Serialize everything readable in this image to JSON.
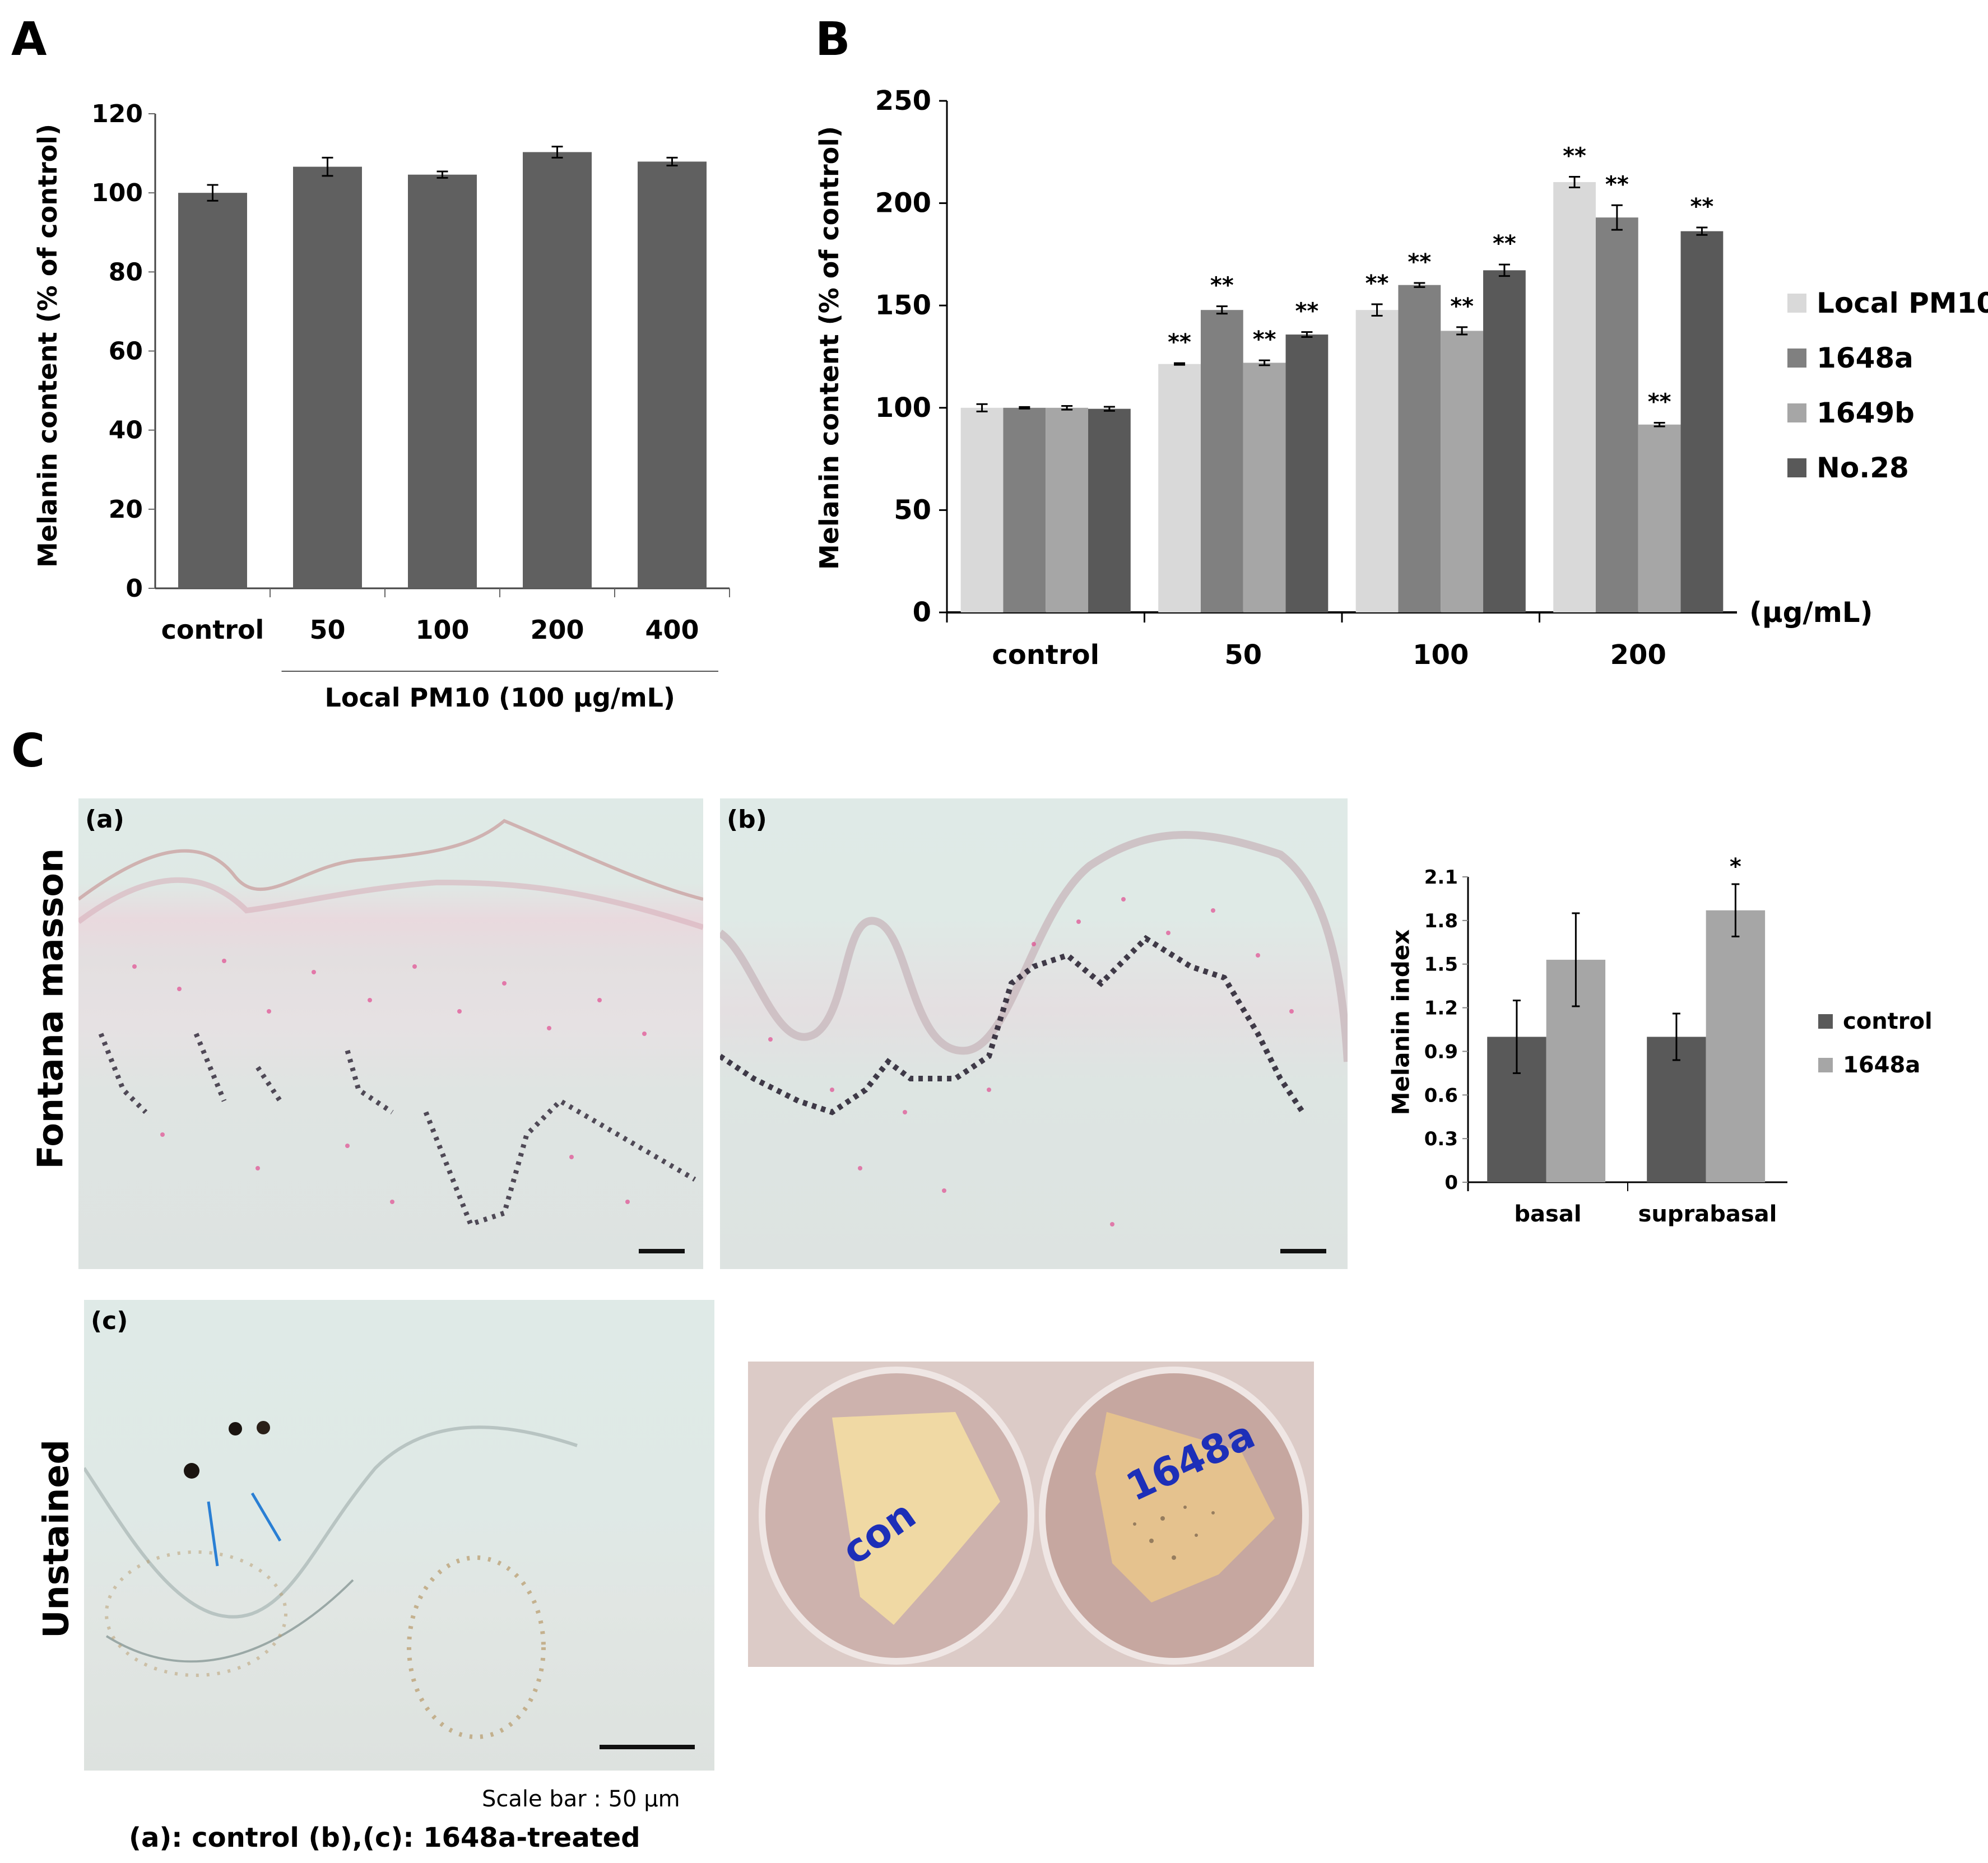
{
  "panels": {
    "A": {
      "label": "A"
    },
    "B": {
      "label": "B"
    },
    "C": {
      "label": "C"
    }
  },
  "chart_data": [
    {
      "id": "A",
      "type": "bar",
      "title": "",
      "xlabel": "Local PM10 (100 µg/mL)",
      "ylabel": "Melanin content (% of control)",
      "ylim": [
        0,
        120
      ],
      "yticks": [
        0,
        20,
        40,
        60,
        80,
        100,
        120
      ],
      "categories": [
        "control",
        "50",
        "100",
        "200",
        "400"
      ],
      "group_label": "Local PM10 (100 µg/mL)",
      "group_spans": [
        "50",
        "100",
        "200",
        "400"
      ],
      "values": [
        100.0,
        106.6,
        104.6,
        110.3,
        107.9
      ],
      "errors": [
        2.0,
        2.3,
        0.8,
        1.4,
        1.0
      ],
      "color": "#606060",
      "grid": false
    },
    {
      "id": "B",
      "type": "bar",
      "title": "",
      "xlabel": "(µg/mL)",
      "ylabel": "Melanin content (% of control)",
      "ylim": [
        0,
        250
      ],
      "yticks": [
        0,
        50,
        100,
        150,
        200,
        250
      ],
      "categories": [
        "control",
        "50",
        "100",
        "200"
      ],
      "legend_position": "right",
      "series": [
        {
          "name": "Local PM10",
          "color": "#d9d9d9",
          "values": [
            100.0,
            121.4,
            147.8,
            210.3
          ],
          "errors": [
            1.8,
            0.4,
            2.8,
            2.6
          ],
          "significance": [
            "",
            "**",
            "**",
            "**"
          ]
        },
        {
          "name": "1648a",
          "color": "#808080",
          "values": [
            100.0,
            147.8,
            160.0,
            193.0
          ],
          "errors": [
            0.4,
            1.8,
            1.0,
            6.0
          ],
          "significance": [
            "",
            "**",
            "**",
            "**"
          ]
        },
        {
          "name": "1649b",
          "color": "#a6a6a6",
          "values": [
            100.0,
            122.0,
            137.6,
            91.8
          ],
          "errors": [
            0.9,
            1.2,
            1.8,
            0.9
          ],
          "significance": [
            "",
            "**",
            "**",
            "**"
          ]
        },
        {
          "name": "No.28",
          "color": "#595959",
          "values": [
            99.5,
            135.8,
            167.2,
            186.3
          ],
          "errors": [
            1.0,
            1.2,
            2.8,
            1.8
          ],
          "significance": [
            "",
            "**",
            "**",
            "**"
          ]
        }
      ],
      "grid": false
    },
    {
      "id": "C",
      "type": "bar",
      "title": "",
      "xlabel": "",
      "ylabel": "Melanin index",
      "ylim": [
        0,
        2.1
      ],
      "yticks": [
        "0",
        "0.3",
        "0.6",
        "0.9",
        "1.2",
        "1.5",
        "1.8",
        "2.1"
      ],
      "categories": [
        "basal",
        "suprabasal"
      ],
      "legend_position": "right",
      "series": [
        {
          "name": "control",
          "color": "#595959",
          "values": [
            1.0,
            1.0
          ],
          "errors": [
            0.25,
            0.16
          ],
          "significance": [
            "",
            ""
          ]
        },
        {
          "name": "1648a",
          "color": "#a6a6a6",
          "values": [
            1.53,
            1.87
          ],
          "errors": [
            0.32,
            0.18
          ],
          "significance": [
            "",
            "*"
          ]
        }
      ],
      "grid": false
    }
  ],
  "images": {
    "a": {
      "label": "(a)"
    },
    "b": {
      "label": "(b)"
    },
    "c": {
      "label": "(c)"
    },
    "photo": {
      "left_label": "con",
      "right_label": "1648a"
    }
  },
  "row_labels": {
    "fontana": "Fontana masson",
    "unstained": "Unstained"
  },
  "scale_bar_text": "Scale bar : 50 µm",
  "caption": "(a): control (b),(c): 1648a-treated"
}
